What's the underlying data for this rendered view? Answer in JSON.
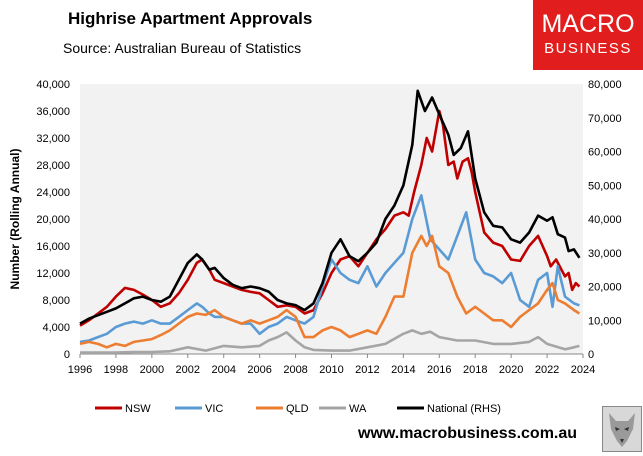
{
  "title": "Highrise Apartment Approvals",
  "subtitle": "Source: Australian Bureau of Statistics",
  "logo": {
    "line1": "MACRO",
    "line2": "BUSINESS"
  },
  "url": "www.macrobusiness.com.au",
  "chart_data": {
    "type": "line",
    "ylabel": "Number (Rolling Annual)",
    "xlim": [
      1996,
      2024
    ],
    "ylim_left": [
      0,
      40000
    ],
    "ylim_right": [
      0,
      80000
    ],
    "x_ticks": [
      "1996",
      "1998",
      "2000",
      "2002",
      "2004",
      "2006",
      "2008",
      "2010",
      "2012",
      "2014",
      "2016",
      "2018",
      "2020",
      "2022",
      "2024"
    ],
    "y_ticks_left": [
      "0",
      "4,000",
      "8,000",
      "12,000",
      "16,000",
      "20,000",
      "24,000",
      "28,000",
      "32,000",
      "36,000",
      "40,000"
    ],
    "y_ticks_right": [
      "0",
      "10,000",
      "20,000",
      "30,000",
      "40,000",
      "50,000",
      "60,000",
      "70,000",
      "80,000"
    ],
    "legend_position": "bottom",
    "colors": {
      "plot_bg": "#f2f2f2",
      "NSW": "#c00000",
      "VIC": "#5b9bd5",
      "QLD": "#ed7d31",
      "WA": "#a5a5a5",
      "National": "#000000"
    },
    "series": [
      {
        "name": "NSW",
        "axis": "left",
        "points": [
          [
            1996.0,
            4200
          ],
          [
            1996.5,
            5000
          ],
          [
            1997.0,
            6000
          ],
          [
            1997.5,
            7000
          ],
          [
            1998.0,
            8500
          ],
          [
            1998.5,
            9800
          ],
          [
            1999.0,
            9500
          ],
          [
            1999.5,
            8800
          ],
          [
            2000.0,
            8000
          ],
          [
            2000.5,
            7000
          ],
          [
            2001.0,
            7500
          ],
          [
            2001.5,
            9000
          ],
          [
            2002.0,
            11000
          ],
          [
            2002.5,
            13500
          ],
          [
            2002.8,
            14000
          ],
          [
            2003.2,
            12500
          ],
          [
            2003.5,
            11000
          ],
          [
            2004.0,
            10500
          ],
          [
            2004.5,
            10000
          ],
          [
            2005.0,
            9500
          ],
          [
            2005.5,
            9200
          ],
          [
            2006.0,
            9000
          ],
          [
            2006.5,
            8000
          ],
          [
            2007.0,
            7000
          ],
          [
            2007.5,
            7200
          ],
          [
            2008.0,
            7000
          ],
          [
            2008.5,
            6000
          ],
          [
            2009.0,
            6500
          ],
          [
            2009.5,
            9000
          ],
          [
            2010.0,
            12000
          ],
          [
            2010.5,
            14000
          ],
          [
            2011.0,
            14500
          ],
          [
            2011.5,
            13000
          ],
          [
            2012.0,
            15000
          ],
          [
            2012.5,
            17000
          ],
          [
            2013.0,
            18500
          ],
          [
            2013.5,
            20500
          ],
          [
            2014.0,
            21000
          ],
          [
            2014.3,
            20500
          ],
          [
            2014.6,
            24000
          ],
          [
            2015.0,
            28000
          ],
          [
            2015.3,
            32000
          ],
          [
            2015.6,
            30000
          ],
          [
            2016.0,
            36000
          ],
          [
            2016.2,
            34000
          ],
          [
            2016.5,
            28000
          ],
          [
            2016.8,
            28500
          ],
          [
            2017.0,
            26000
          ],
          [
            2017.3,
            28500
          ],
          [
            2017.6,
            29000
          ],
          [
            2017.8,
            27000
          ],
          [
            2018.0,
            24000
          ],
          [
            2018.5,
            18000
          ],
          [
            2019.0,
            16500
          ],
          [
            2019.5,
            16000
          ],
          [
            2020.0,
            14000
          ],
          [
            2020.5,
            13800
          ],
          [
            2021.0,
            16000
          ],
          [
            2021.5,
            17500
          ],
          [
            2022.0,
            14500
          ],
          [
            2022.2,
            13000
          ],
          [
            2022.5,
            14000
          ],
          [
            2022.8,
            12500
          ],
          [
            2023.0,
            11500
          ],
          [
            2023.2,
            12000
          ],
          [
            2023.4,
            9500
          ],
          [
            2023.6,
            10500
          ],
          [
            2023.8,
            10000
          ]
        ]
      },
      {
        "name": "VIC",
        "axis": "left",
        "points": [
          [
            1996.0,
            1800
          ],
          [
            1996.5,
            2000
          ],
          [
            1997.0,
            2500
          ],
          [
            1997.5,
            3000
          ],
          [
            1998.0,
            4000
          ],
          [
            1998.5,
            4500
          ],
          [
            1999.0,
            4800
          ],
          [
            1999.5,
            4500
          ],
          [
            2000.0,
            5000
          ],
          [
            2000.5,
            4500
          ],
          [
            2001.0,
            4500
          ],
          [
            2001.5,
            5500
          ],
          [
            2002.0,
            6500
          ],
          [
            2002.5,
            7500
          ],
          [
            2002.8,
            7000
          ],
          [
            2003.2,
            6000
          ],
          [
            2003.5,
            5500
          ],
          [
            2004.0,
            5500
          ],
          [
            2004.5,
            5000
          ],
          [
            2005.0,
            4500
          ],
          [
            2005.5,
            4500
          ],
          [
            2006.0,
            3000
          ],
          [
            2006.5,
            4000
          ],
          [
            2007.0,
            4500
          ],
          [
            2007.5,
            5500
          ],
          [
            2008.0,
            5000
          ],
          [
            2008.5,
            4500
          ],
          [
            2009.0,
            5500
          ],
          [
            2009.5,
            10000
          ],
          [
            2010.0,
            14000
          ],
          [
            2010.5,
            12000
          ],
          [
            2011.0,
            11000
          ],
          [
            2011.5,
            10500
          ],
          [
            2012.0,
            13000
          ],
          [
            2012.5,
            10000
          ],
          [
            2013.0,
            12000
          ],
          [
            2013.5,
            13500
          ],
          [
            2014.0,
            15000
          ],
          [
            2014.5,
            20000
          ],
          [
            2015.0,
            23500
          ],
          [
            2015.5,
            17000
          ],
          [
            2016.0,
            15500
          ],
          [
            2016.5,
            14000
          ],
          [
            2017.0,
            17500
          ],
          [
            2017.5,
            21000
          ],
          [
            2018.0,
            14000
          ],
          [
            2018.5,
            12000
          ],
          [
            2019.0,
            11500
          ],
          [
            2019.5,
            10500
          ],
          [
            2020.0,
            12000
          ],
          [
            2020.5,
            8000
          ],
          [
            2021.0,
            7000
          ],
          [
            2021.5,
            11000
          ],
          [
            2022.0,
            12000
          ],
          [
            2022.3,
            7000
          ],
          [
            2022.6,
            13000
          ],
          [
            2023.0,
            8500
          ],
          [
            2023.5,
            7500
          ],
          [
            2023.8,
            7200
          ]
        ]
      },
      {
        "name": "QLD",
        "axis": "left",
        "points": [
          [
            1996.0,
            1500
          ],
          [
            1996.5,
            1800
          ],
          [
            1997.0,
            1500
          ],
          [
            1997.5,
            1000
          ],
          [
            1998.0,
            1500
          ],
          [
            1998.5,
            1200
          ],
          [
            1999.0,
            1800
          ],
          [
            1999.5,
            2000
          ],
          [
            2000.0,
            2200
          ],
          [
            2000.5,
            2800
          ],
          [
            2001.0,
            3500
          ],
          [
            2001.5,
            4500
          ],
          [
            2002.0,
            5500
          ],
          [
            2002.5,
            6000
          ],
          [
            2003.0,
            5800
          ],
          [
            2003.5,
            6500
          ],
          [
            2004.0,
            5500
          ],
          [
            2004.5,
            5000
          ],
          [
            2005.0,
            4500
          ],
          [
            2005.5,
            5000
          ],
          [
            2006.0,
            4500
          ],
          [
            2006.5,
            5000
          ],
          [
            2007.0,
            5500
          ],
          [
            2007.5,
            6500
          ],
          [
            2008.0,
            5500
          ],
          [
            2008.5,
            2500
          ],
          [
            2009.0,
            2500
          ],
          [
            2009.5,
            3500
          ],
          [
            2010.0,
            4000
          ],
          [
            2010.5,
            3500
          ],
          [
            2011.0,
            2500
          ],
          [
            2011.5,
            3000
          ],
          [
            2012.0,
            3500
          ],
          [
            2012.5,
            3000
          ],
          [
            2013.0,
            5500
          ],
          [
            2013.5,
            8500
          ],
          [
            2014.0,
            8500
          ],
          [
            2014.5,
            15000
          ],
          [
            2015.0,
            17500
          ],
          [
            2015.3,
            16000
          ],
          [
            2015.6,
            17500
          ],
          [
            2016.0,
            13000
          ],
          [
            2016.5,
            12000
          ],
          [
            2017.0,
            8500
          ],
          [
            2017.5,
            6000
          ],
          [
            2018.0,
            7000
          ],
          [
            2018.5,
            6000
          ],
          [
            2019.0,
            5000
          ],
          [
            2019.5,
            5000
          ],
          [
            2020.0,
            4000
          ],
          [
            2020.5,
            5500
          ],
          [
            2021.0,
            6500
          ],
          [
            2021.5,
            7500
          ],
          [
            2022.0,
            9500
          ],
          [
            2022.3,
            10500
          ],
          [
            2022.6,
            8000
          ],
          [
            2023.0,
            7500
          ],
          [
            2023.5,
            6500
          ],
          [
            2023.8,
            6000
          ]
        ]
      },
      {
        "name": "WA",
        "axis": "left",
        "points": [
          [
            1996.0,
            200
          ],
          [
            1997.0,
            200
          ],
          [
            1998.0,
            200
          ],
          [
            1999.0,
            300
          ],
          [
            2000.0,
            300
          ],
          [
            2001.0,
            400
          ],
          [
            2002.0,
            1000
          ],
          [
            2003.0,
            500
          ],
          [
            2004.0,
            1200
          ],
          [
            2005.0,
            1000
          ],
          [
            2006.0,
            1200
          ],
          [
            2006.5,
            2000
          ],
          [
            2007.0,
            2500
          ],
          [
            2007.5,
            3200
          ],
          [
            2008.0,
            2000
          ],
          [
            2008.5,
            1000
          ],
          [
            2009.0,
            600
          ],
          [
            2010.0,
            500
          ],
          [
            2011.0,
            500
          ],
          [
            2012.0,
            1000
          ],
          [
            2013.0,
            1500
          ],
          [
            2014.0,
            3000
          ],
          [
            2014.5,
            3500
          ],
          [
            2015.0,
            3000
          ],
          [
            2015.5,
            3300
          ],
          [
            2016.0,
            2500
          ],
          [
            2017.0,
            2000
          ],
          [
            2018.0,
            2000
          ],
          [
            2019.0,
            1500
          ],
          [
            2020.0,
            1500
          ],
          [
            2021.0,
            1800
          ],
          [
            2021.5,
            2500
          ],
          [
            2022.0,
            1500
          ],
          [
            2023.0,
            700
          ],
          [
            2023.5,
            1000
          ],
          [
            2023.8,
            1200
          ]
        ]
      },
      {
        "name": "National (RHS)",
        "axis": "right",
        "points": [
          [
            1996.0,
            9000
          ],
          [
            1996.5,
            10500
          ],
          [
            1997.0,
            11500
          ],
          [
            1997.5,
            12500
          ],
          [
            1998.0,
            13500
          ],
          [
            1998.5,
            15000
          ],
          [
            1999.0,
            16500
          ],
          [
            1999.5,
            17000
          ],
          [
            2000.0,
            16000
          ],
          [
            2000.5,
            15500
          ],
          [
            2001.0,
            17000
          ],
          [
            2001.5,
            22000
          ],
          [
            2002.0,
            27000
          ],
          [
            2002.5,
            29500
          ],
          [
            2002.8,
            28000
          ],
          [
            2003.2,
            25000
          ],
          [
            2003.5,
            25500
          ],
          [
            2004.0,
            22500
          ],
          [
            2004.5,
            20500
          ],
          [
            2005.0,
            19500
          ],
          [
            2005.5,
            20000
          ],
          [
            2006.0,
            19500
          ],
          [
            2006.5,
            18500
          ],
          [
            2007.0,
            16000
          ],
          [
            2007.5,
            15000
          ],
          [
            2008.0,
            14500
          ],
          [
            2008.5,
            13000
          ],
          [
            2009.0,
            15000
          ],
          [
            2009.5,
            21000
          ],
          [
            2010.0,
            30000
          ],
          [
            2010.5,
            34000
          ],
          [
            2011.0,
            29000
          ],
          [
            2011.5,
            27500
          ],
          [
            2012.0,
            30000
          ],
          [
            2012.5,
            33000
          ],
          [
            2013.0,
            40000
          ],
          [
            2013.5,
            44000
          ],
          [
            2014.0,
            50000
          ],
          [
            2014.5,
            62000
          ],
          [
            2014.8,
            78000
          ],
          [
            2015.2,
            72000
          ],
          [
            2015.6,
            76000
          ],
          [
            2016.0,
            71000
          ],
          [
            2016.5,
            65000
          ],
          [
            2016.8,
            59000
          ],
          [
            2017.2,
            61000
          ],
          [
            2017.6,
            66000
          ],
          [
            2018.0,
            52000
          ],
          [
            2018.5,
            42000
          ],
          [
            2019.0,
            38000
          ],
          [
            2019.5,
            37500
          ],
          [
            2020.0,
            34000
          ],
          [
            2020.5,
            33000
          ],
          [
            2021.0,
            36000
          ],
          [
            2021.5,
            41000
          ],
          [
            2022.0,
            39500
          ],
          [
            2022.3,
            40500
          ],
          [
            2022.6,
            35500
          ],
          [
            2023.0,
            34500
          ],
          [
            2023.2,
            30500
          ],
          [
            2023.5,
            31000
          ],
          [
            2023.8,
            28500
          ]
        ]
      }
    ]
  }
}
